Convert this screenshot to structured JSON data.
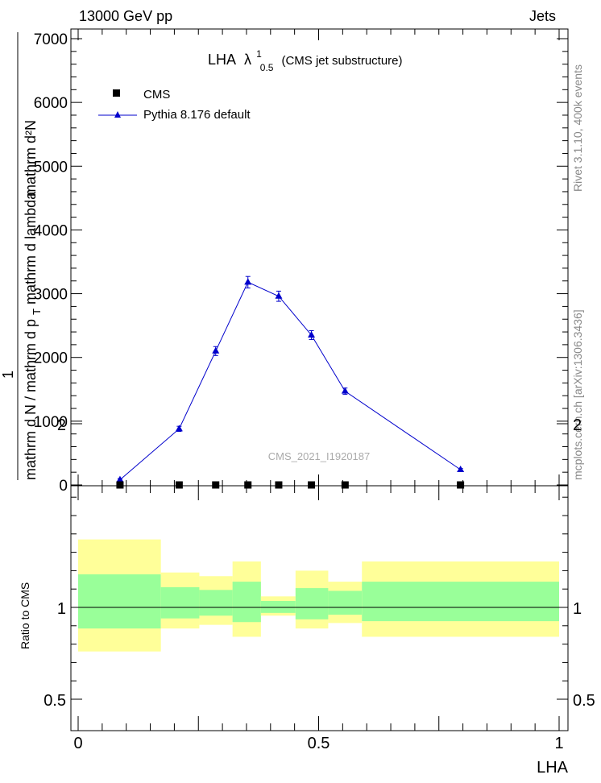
{
  "header": {
    "left": "13000 GeV pp",
    "right": "Jets"
  },
  "side_labels": {
    "rivet": "Rivet 3.1.10,  400k events",
    "mcplots": "mcplots.cern.ch [arXiv:1306.3436]"
  },
  "chart_data": [
    {
      "type": "line",
      "title": "LHA",
      "title_symbol": "λ",
      "title_superscript": "1",
      "title_subscript": "0.5",
      "title_suffix": "(CMS jet substructure)",
      "watermark": "CMS_2021_I1920187",
      "ylabel_fraction_numerator": "1",
      "ylabel_top": "mathrm d²N",
      "ylabel_top_2": "mathrm d p",
      "ylabel_top_sub": "T",
      "ylabel_top_3": " mathrm d lambda",
      "ylabel_bottom": "mathrm d N / mathrm d p",
      "ylabel_bottom_sub": "T",
      "ylabel_bottom_2": " mathrm d N / mathrm d p",
      "ylabel_bottom_sub2": "T",
      "yticks": [
        "0",
        "1000",
        "2000",
        "3000",
        "4000",
        "5000",
        "6000",
        "7000"
      ],
      "ylim": [
        0,
        7000
      ],
      "xlim": [
        0,
        1.02
      ],
      "legend_placement": "top-left",
      "series": [
        {
          "name": "CMS",
          "marker": "square",
          "color": "#000000",
          "x": [
            0.087,
            0.21,
            0.286,
            0.353,
            0.417,
            0.485,
            0.555,
            0.795
          ],
          "y": [
            0,
            0,
            0,
            0,
            0,
            0,
            0,
            0
          ]
        },
        {
          "name": "Pythia 8.176 default",
          "marker": "triangle",
          "color": "#0000cc",
          "x": [
            0.087,
            0.21,
            0.286,
            0.353,
            0.417,
            0.485,
            0.555,
            0.795
          ],
          "y": [
            80,
            880,
            2100,
            3180,
            2960,
            2350,
            1470,
            240
          ],
          "yerr": [
            20,
            40,
            70,
            90,
            80,
            70,
            50,
            20
          ]
        }
      ]
    },
    {
      "type": "area",
      "ylabel": "Ratio to CMS",
      "xlabel": "LHA",
      "yticks": [
        "0.5",
        "1",
        "2"
      ],
      "xticks": [
        "0",
        "0.5",
        "1"
      ],
      "ylim": [
        0.4,
        2.4
      ],
      "xlim": [
        -0.02,
        1.02
      ],
      "reference_line": 1,
      "bands": [
        {
          "x0": 0.0,
          "x1": 0.172,
          "inner": [
            0.885,
            1.18
          ],
          "outer": [
            0.76,
            1.37
          ]
        },
        {
          "x0": 0.172,
          "x1": 0.252,
          "inner": [
            0.94,
            1.11
          ],
          "outer": [
            0.885,
            1.19
          ]
        },
        {
          "x0": 0.252,
          "x1": 0.321,
          "inner": [
            0.955,
            1.095
          ],
          "outer": [
            0.905,
            1.17
          ]
        },
        {
          "x0": 0.321,
          "x1": 0.38,
          "inner": [
            0.92,
            1.14
          ],
          "outer": [
            0.84,
            1.25
          ]
        },
        {
          "x0": 0.38,
          "x1": 0.452,
          "inner": [
            0.97,
            1.035
          ],
          "outer": [
            0.955,
            1.06
          ]
        },
        {
          "x0": 0.452,
          "x1": 0.52,
          "inner": [
            0.935,
            1.105
          ],
          "outer": [
            0.885,
            1.2
          ]
        },
        {
          "x0": 0.52,
          "x1": 0.59,
          "inner": [
            0.96,
            1.09
          ],
          "outer": [
            0.915,
            1.14
          ]
        },
        {
          "x0": 0.59,
          "x1": 1.0,
          "inner": [
            0.925,
            1.14
          ],
          "outer": [
            0.84,
            1.25
          ]
        }
      ],
      "colors": {
        "inner": "#99ff99",
        "outer": "#ffff99"
      }
    }
  ]
}
